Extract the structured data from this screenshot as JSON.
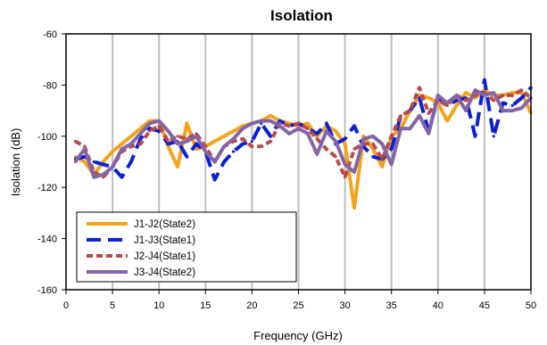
{
  "chart_data": {
    "type": "line",
    "title": "Isolation",
    "xlabel": "Frequency (GHz)",
    "ylabel": "Isolation  (dB)",
    "xlim": [
      0,
      50
    ],
    "ylim": [
      -160,
      -60
    ],
    "xticks": [
      0,
      5,
      10,
      15,
      20,
      25,
      30,
      35,
      40,
      45,
      50
    ],
    "yticks": [
      -160,
      -140,
      -120,
      -100,
      -80,
      -60
    ],
    "grid": "vertical",
    "legend_position": "bottom-left",
    "series": [
      {
        "name": "J1-J2(State2)",
        "color": "#f5a21b",
        "dash": "solid",
        "x": [
          1,
          2,
          3,
          4,
          5,
          6,
          7,
          8,
          9,
          10,
          11,
          12,
          13,
          14,
          15,
          16,
          17,
          18,
          19,
          20,
          21,
          22,
          23,
          24,
          25,
          26,
          27,
          28,
          29,
          30,
          31,
          32,
          33,
          34,
          35,
          36,
          37,
          38,
          39,
          40,
          41,
          42,
          43,
          44,
          45,
          46,
          47,
          48,
          49,
          50
        ],
        "y": [
          -108,
          -110,
          -115,
          -110,
          -106,
          -103,
          -100,
          -97,
          -94,
          -94,
          -104,
          -112,
          -95,
          -105,
          -104,
          -102,
          -100,
          -98,
          -96,
          -95,
          -94,
          -92,
          -94,
          -95,
          -96,
          -95,
          -100,
          -96,
          -98,
          -103,
          -128,
          -100,
          -105,
          -112,
          -100,
          -97,
          -90,
          -84,
          -85,
          -87,
          -94,
          -88,
          -83,
          -85,
          -82,
          -84,
          -84,
          -83,
          -83,
          -91
        ]
      },
      {
        "name": "J1-J3(State1)",
        "color": "#0a1fd6",
        "dash": "long",
        "x": [
          1,
          2,
          3,
          4,
          5,
          6,
          7,
          8,
          9,
          10,
          11,
          12,
          13,
          14,
          15,
          16,
          17,
          18,
          19,
          20,
          21,
          22,
          23,
          24,
          25,
          26,
          27,
          28,
          29,
          30,
          31,
          32,
          33,
          34,
          35,
          36,
          37,
          38,
          39,
          40,
          41,
          42,
          43,
          44,
          45,
          46,
          47,
          48,
          49,
          50
        ],
        "y": [
          -109,
          -108,
          -110,
          -111,
          -112,
          -116,
          -110,
          -101,
          -97,
          -98,
          -103,
          -102,
          -108,
          -103,
          -106,
          -117,
          -110,
          -106,
          -103,
          -102,
          -95,
          -100,
          -94,
          -96,
          -95,
          -97,
          -99,
          -95,
          -103,
          -101,
          -96,
          -104,
          -108,
          -109,
          -105,
          -92,
          -90,
          -85,
          -98,
          -85,
          -88,
          -86,
          -85,
          -100,
          -78,
          -100,
          -87,
          -88,
          -85,
          -81
        ]
      },
      {
        "name": "J2-J4(State1)",
        "color": "#b84a4a",
        "dash": "short",
        "x": [
          1,
          2,
          3,
          4,
          5,
          6,
          7,
          8,
          9,
          10,
          11,
          12,
          13,
          14,
          15,
          16,
          17,
          18,
          19,
          20,
          21,
          22,
          23,
          24,
          25,
          26,
          27,
          28,
          29,
          30,
          31,
          32,
          33,
          34,
          35,
          36,
          37,
          38,
          39,
          40,
          41,
          42,
          43,
          44,
          45,
          46,
          47,
          48,
          49,
          50
        ],
        "y": [
          -102,
          -104,
          -114,
          -116,
          -112,
          -106,
          -104,
          -103,
          -98,
          -96,
          -102,
          -100,
          -101,
          -99,
          -104,
          -110,
          -104,
          -102,
          -101,
          -104,
          -104,
          -102,
          -95,
          -96,
          -95,
          -97,
          -101,
          -105,
          -108,
          -116,
          -105,
          -103,
          -103,
          -109,
          -100,
          -92,
          -90,
          -81,
          -91,
          -86,
          -88,
          -84,
          -86,
          -84,
          -83,
          -86,
          -84,
          -84,
          -82,
          -85
        ]
      },
      {
        "name": "J3-J4(State2)",
        "color": "#8364a8",
        "dash": "solid",
        "x": [
          1,
          2,
          3,
          4,
          5,
          6,
          7,
          8,
          9,
          10,
          11,
          12,
          13,
          14,
          15,
          16,
          17,
          18,
          19,
          20,
          21,
          22,
          23,
          24,
          25,
          26,
          27,
          28,
          29,
          30,
          31,
          32,
          33,
          34,
          35,
          36,
          37,
          38,
          39,
          40,
          41,
          42,
          43,
          44,
          45,
          46,
          47,
          48,
          49,
          50
        ],
        "y": [
          -110,
          -105,
          -116,
          -115,
          -112,
          -105,
          -103,
          -99,
          -95,
          -94,
          -98,
          -103,
          -102,
          -100,
          -106,
          -110,
          -104,
          -101,
          -97,
          -95,
          -94,
          -94,
          -96,
          -99,
          -97,
          -99,
          -107,
          -98,
          -102,
          -111,
          -114,
          -101,
          -100,
          -103,
          -111,
          -97,
          -97,
          -92,
          -99,
          -84,
          -87,
          -84,
          -90,
          -82,
          -84,
          -83,
          -90,
          -90,
          -89,
          -85
        ]
      }
    ]
  }
}
